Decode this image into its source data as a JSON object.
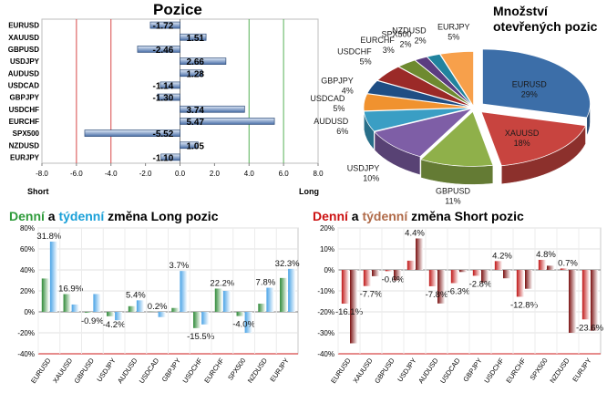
{
  "positions": {
    "title": "Pozice",
    "axis_left_label": "Short",
    "axis_right_label": "Long"
  },
  "pie": {
    "title": "Množství otevřených pozic"
  },
  "long_changes": {
    "title_daily": "Denní",
    "title_and": "a",
    "title_weekly": "týdenní",
    "title_rest": "změna Long pozic"
  },
  "short_changes": {
    "title_daily": "Denní",
    "title_and": "a",
    "title_weekly": "týdenní",
    "title_rest": "změna Short pozic"
  },
  "colors": {
    "pos_bar": "#4a6fa8",
    "long_daily": "#2f8a38",
    "long_weekly": "#4aa3e6",
    "short_daily": "#c01818",
    "short_weekly": "#7a1010",
    "red_line": "#d84848",
    "green_line": "#57b057"
  },
  "chart_data": [
    {
      "type": "bar",
      "orientation": "horizontal",
      "categories": [
        "EURUSD",
        "XAUUSD",
        "GBPUSD",
        "USDJPY",
        "AUDUSD",
        "USDCAD",
        "GBPJPY",
        "USDCHF",
        "EURCHF",
        "SPX500",
        "NZDUSD",
        "EURJPY"
      ],
      "values": [
        -1.72,
        1.51,
        -2.46,
        2.66,
        1.28,
        -1.14,
        -1.3,
        3.74,
        5.47,
        -5.52,
        1.05,
        -1.1
      ],
      "data_labels": [
        "-1.72",
        "1.51",
        "-2.46",
        "2.66",
        "1.28",
        "-1.14",
        "-1.30",
        "3.74",
        "5.47",
        "-5.52",
        "1.05",
        "-1.10"
      ],
      "xlim": [
        -8,
        8
      ],
      "x_ticks": [
        "-8.0",
        "-6.0",
        "-4.0",
        "-2.0",
        "0.0",
        "2.0",
        "4.0",
        "6.0",
        "8.0"
      ],
      "reference_lines": {
        "red": [
          -6,
          -4
        ],
        "green": [
          4,
          6
        ]
      }
    },
    {
      "type": "pie",
      "style": "3d exploded",
      "slices": [
        {
          "label": "EURUSD",
          "value": 29,
          "pct": "29%",
          "color": "#3c6ea8"
        },
        {
          "label": "XAUUSD",
          "value": 18,
          "pct": "18%",
          "color": "#c8443f"
        },
        {
          "label": "GBPUSD",
          "value": 11,
          "pct": "11%",
          "color": "#8fb04a"
        },
        {
          "label": "USDJPY",
          "value": 10,
          "pct": "10%",
          "color": "#7e5ea6"
        },
        {
          "label": "AUDUSD",
          "value": 6,
          "pct": "6%",
          "color": "#3a9ec4"
        },
        {
          "label": "USDCAD",
          "value": 5,
          "pct": "5%",
          "color": "#f0922f"
        },
        {
          "label": "GBPJPY",
          "value": 4,
          "pct": "4%",
          "color": "#1f4e84"
        },
        {
          "label": "USDCHF",
          "value": 5,
          "pct": "5%",
          "color": "#9b2a28"
        },
        {
          "label": "EURCHF",
          "value": 3,
          "pct": "3%",
          "color": "#6e8a30"
        },
        {
          "label": "SPX500",
          "value": 2,
          "pct": "2%",
          "color": "#5b3d80"
        },
        {
          "label": "NZDUSD",
          "value": 2,
          "pct": "2%",
          "color": "#21839e"
        },
        {
          "label": "EURJPY",
          "value": 5,
          "pct": "5%",
          "color": "#f7a04b"
        }
      ]
    },
    {
      "type": "bar",
      "categories": [
        "EURUSD",
        "XAUUSD",
        "GBPUSD",
        "USDJPY",
        "AUDUSD",
        "USDCAD",
        "GBPJPY",
        "USDCHF",
        "EURCHF",
        "SPX500",
        "NZDUSD",
        "EURJPY"
      ],
      "series": [
        {
          "values": [
            31.8,
            16.9,
            -0.9,
            -4.2,
            5.4,
            0.2,
            3.7,
            -15.5,
            22.2,
            -4.0,
            7.8,
            32.3
          ]
        },
        {
          "values": [
            67,
            7,
            17,
            -8,
            11,
            -5,
            39,
            -12,
            20,
            -20,
            23,
            41
          ]
        }
      ],
      "data_labels": [
        "31.8%",
        "16.9%",
        "-0.9%",
        "-4.2%",
        "5.4%",
        "0.2%",
        "3.7%",
        "-15.5%",
        "22.2%",
        "-4.0%",
        "7.8%",
        "32.3%"
      ],
      "ylim": [
        -40,
        80
      ],
      "y_ticks": [
        "80%",
        "60%",
        "40%",
        "20%",
        "0%",
        "-20%",
        "-40%"
      ]
    },
    {
      "type": "bar",
      "categories": [
        "EURUSD",
        "XAUUSD",
        "GBPUSD",
        "USDJPY",
        "AUDUSD",
        "USDCAD",
        "GBPJPY",
        "USDCHF",
        "EURCHF",
        "SPX500",
        "NZDUSD",
        "EURJPY"
      ],
      "series": [
        {
          "values": [
            -16.1,
            -7.7,
            -0.6,
            4.4,
            -7.8,
            -6.3,
            -2.8,
            4.2,
            -12.8,
            4.8,
            0.7,
            -23.6
          ]
        },
        {
          "values": [
            -35,
            -3,
            -5,
            15,
            -16,
            -1,
            -6,
            -4,
            -9,
            2,
            -30,
            -29
          ]
        }
      ],
      "data_labels": [
        "-16.1%",
        "-7.7%",
        "-0.6%",
        "4.4%",
        "-7.8%",
        "-6.3%",
        "-2.8%",
        "4.2%",
        "-12.8%",
        "4.8%",
        "0.7%",
        "-23.6%"
      ],
      "ylim": [
        -40,
        20
      ],
      "y_ticks": [
        "20%",
        "10%",
        "0%",
        "-10%",
        "-20%",
        "-30%",
        "-40%"
      ]
    }
  ]
}
